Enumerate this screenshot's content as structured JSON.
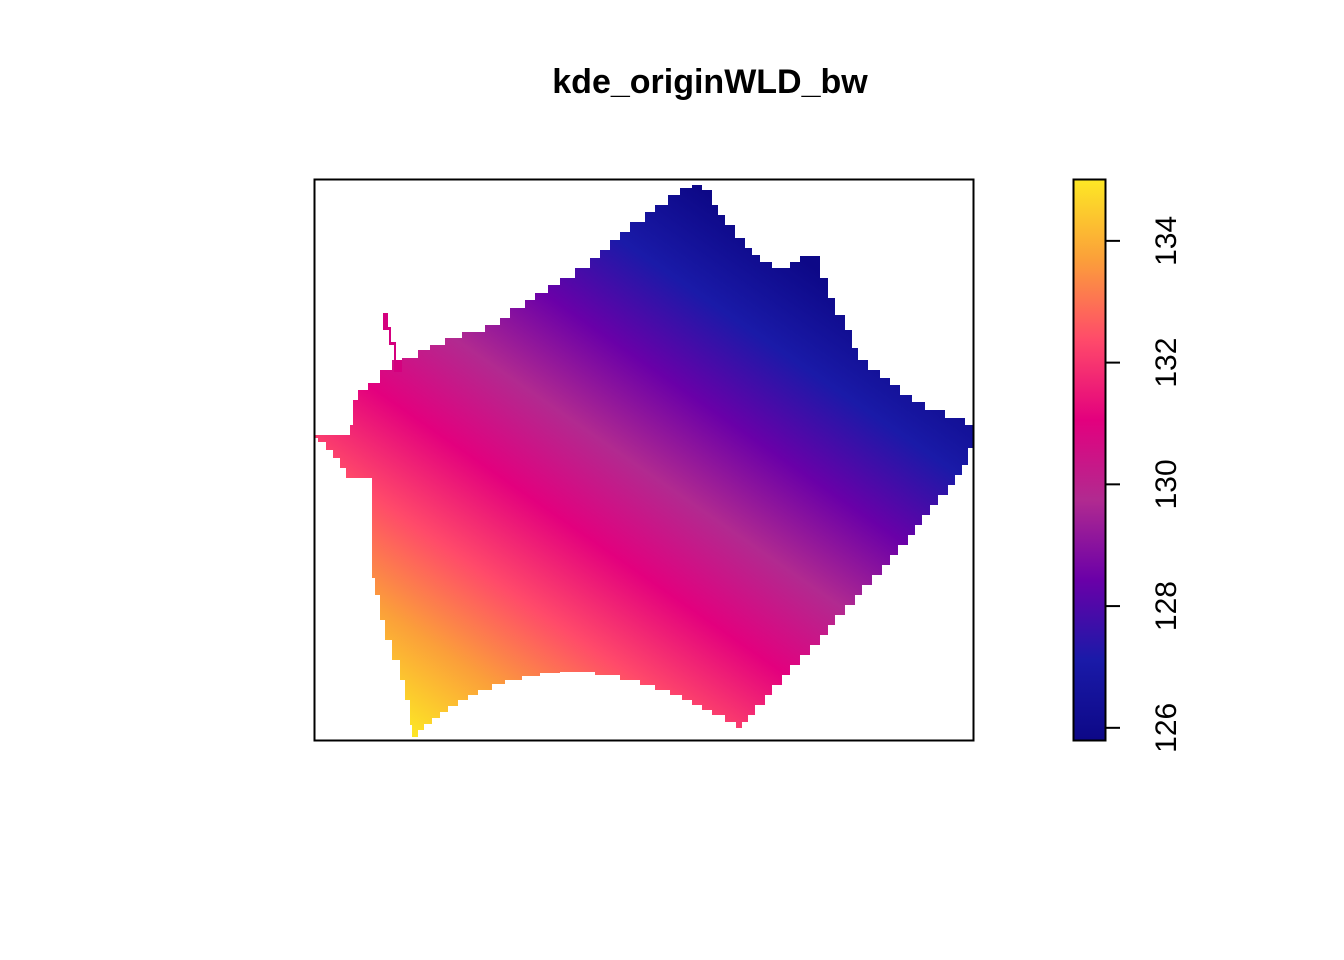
{
  "chart_data": {
    "type": "heatmap",
    "title": "kde_originWLD_bw",
    "xlabel": "",
    "ylabel": "",
    "legend": {
      "position": "right",
      "range": [
        125.8,
        135.0
      ],
      "ticks": [
        126,
        128,
        130,
        132,
        134
      ],
      "tick_labels": [
        "126",
        "128",
        "130",
        "132",
        "134"
      ],
      "colors": [
        "#0D0887",
        "#1A1AA8",
        "#6A00A8",
        "#B12A90",
        "#E3007E",
        "#FF4A6A",
        "#FB9F3A",
        "#FDE725"
      ]
    },
    "raster": {
      "value_range": [
        125.8,
        135.0
      ],
      "low_corner": "top-right",
      "high_corner": "bottom-left",
      "grid": false
    }
  }
}
